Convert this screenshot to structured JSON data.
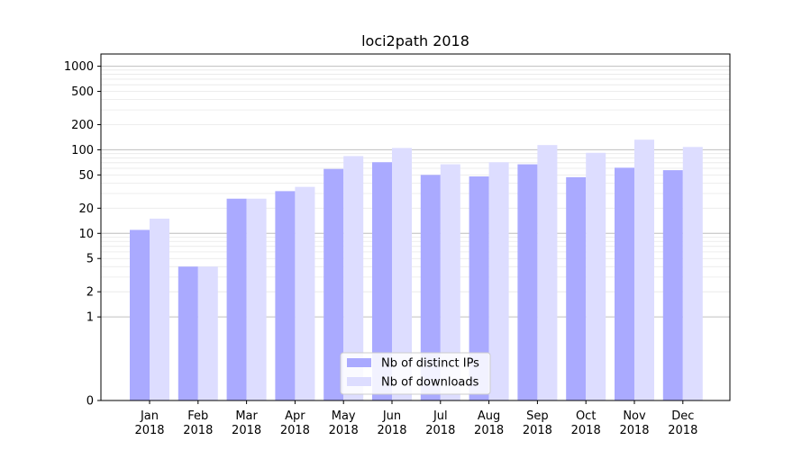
{
  "chart_data": {
    "type": "bar",
    "title": "loci2path 2018",
    "xlabel": "",
    "ylabel": "",
    "y_scale": "symlog",
    "y_ticks": [
      0,
      1,
      2,
      5,
      10,
      20,
      50,
      100,
      200,
      500,
      1000
    ],
    "categories": [
      [
        "Jan",
        "2018"
      ],
      [
        "Feb",
        "2018"
      ],
      [
        "Mar",
        "2018"
      ],
      [
        "Apr",
        "2018"
      ],
      [
        "May",
        "2018"
      ],
      [
        "Jun",
        "2018"
      ],
      [
        "Jul",
        "2018"
      ],
      [
        "Aug",
        "2018"
      ],
      [
        "Sep",
        "2018"
      ],
      [
        "Oct",
        "2018"
      ],
      [
        "Nov",
        "2018"
      ],
      [
        "Dec",
        "2018"
      ]
    ],
    "series": [
      {
        "name": "Nb of distinct IPs",
        "color": "#aaaaff",
        "values": [
          11,
          4,
          26,
          32,
          59,
          71,
          50,
          48,
          67,
          47,
          61,
          57
        ]
      },
      {
        "name": "Nb of downloads",
        "color": "#ddddff",
        "values": [
          15,
          4,
          26,
          36,
          84,
          105,
          67,
          71,
          114,
          92,
          132,
          108
        ]
      }
    ],
    "grid": true,
    "legend_position": "bottom-center"
  }
}
